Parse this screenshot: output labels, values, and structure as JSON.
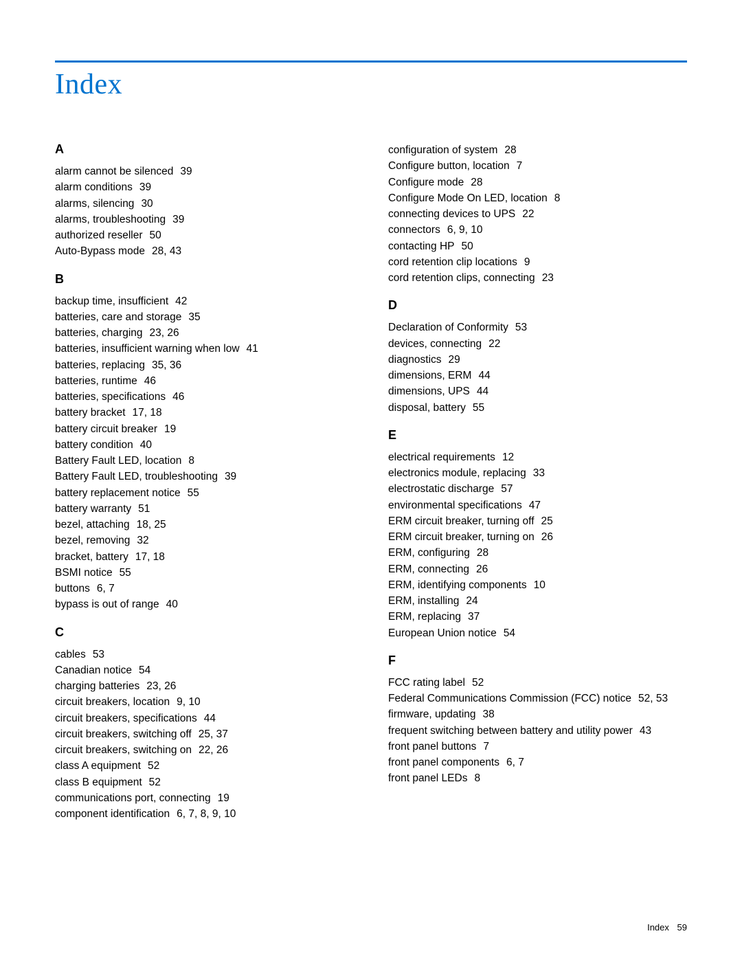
{
  "title": "Index",
  "footer": {
    "label": "Index",
    "page": "59"
  },
  "colors": {
    "accent": "#0073cf",
    "text": "#000000",
    "background": "#ffffff"
  },
  "columns": [
    {
      "sections": [
        {
          "letter": "A",
          "entries": [
            {
              "term": "alarm cannot be silenced",
              "pages": "39"
            },
            {
              "term": "alarm conditions",
              "pages": "39"
            },
            {
              "term": "alarms, silencing",
              "pages": "30"
            },
            {
              "term": "alarms, troubleshooting",
              "pages": "39"
            },
            {
              "term": "authorized reseller",
              "pages": "50"
            },
            {
              "term": "Auto-Bypass mode",
              "pages": "28, 43"
            }
          ]
        },
        {
          "letter": "B",
          "entries": [
            {
              "term": "backup time, insufficient",
              "pages": "42"
            },
            {
              "term": "batteries, care and storage",
              "pages": "35"
            },
            {
              "term": "batteries, charging",
              "pages": "23, 26"
            },
            {
              "term": "batteries, insufficient warning when low",
              "pages": "41"
            },
            {
              "term": "batteries, replacing",
              "pages": "35, 36"
            },
            {
              "term": "batteries, runtime",
              "pages": "46"
            },
            {
              "term": "batteries, specifications",
              "pages": "46"
            },
            {
              "term": "battery bracket",
              "pages": "17, 18"
            },
            {
              "term": "battery circuit breaker",
              "pages": "19"
            },
            {
              "term": "battery condition",
              "pages": "40"
            },
            {
              "term": "Battery Fault LED, location",
              "pages": "8"
            },
            {
              "term": "Battery Fault LED, troubleshooting",
              "pages": "39"
            },
            {
              "term": "battery replacement notice",
              "pages": "55"
            },
            {
              "term": "battery warranty",
              "pages": "51"
            },
            {
              "term": "bezel, attaching",
              "pages": "18, 25"
            },
            {
              "term": "bezel, removing",
              "pages": "32"
            },
            {
              "term": "bracket, battery",
              "pages": "17, 18"
            },
            {
              "term": "BSMI notice",
              "pages": "55"
            },
            {
              "term": "buttons",
              "pages": "6, 7"
            },
            {
              "term": "bypass is out of range",
              "pages": "40"
            }
          ]
        },
        {
          "letter": "C",
          "entries": [
            {
              "term": "cables",
              "pages": "53"
            },
            {
              "term": "Canadian notice",
              "pages": "54"
            },
            {
              "term": "charging batteries",
              "pages": "23, 26"
            },
            {
              "term": "circuit breakers, location",
              "pages": "9, 10"
            },
            {
              "term": "circuit breakers, specifications",
              "pages": "44"
            },
            {
              "term": "circuit breakers, switching off",
              "pages": "25, 37"
            },
            {
              "term": "circuit breakers, switching on",
              "pages": "22, 26"
            },
            {
              "term": "class A equipment",
              "pages": "52"
            },
            {
              "term": "class B equipment",
              "pages": "52"
            },
            {
              "term": "communications port, connecting",
              "pages": "19"
            },
            {
              "term": "component identification",
              "pages": "6, 7, 8, 9, 10"
            }
          ]
        }
      ]
    },
    {
      "sections": [
        {
          "letter": "",
          "entries": [
            {
              "term": "configuration of system",
              "pages": "28"
            },
            {
              "term": "Configure button, location",
              "pages": "7"
            },
            {
              "term": "Configure mode",
              "pages": "28"
            },
            {
              "term": "Configure Mode On LED, location",
              "pages": "8"
            },
            {
              "term": "connecting devices to UPS",
              "pages": "22"
            },
            {
              "term": "connectors",
              "pages": "6, 9, 10"
            },
            {
              "term": "contacting HP",
              "pages": "50"
            },
            {
              "term": "cord retention clip locations",
              "pages": "9"
            },
            {
              "term": "cord retention clips, connecting",
              "pages": "23"
            }
          ]
        },
        {
          "letter": "D",
          "entries": [
            {
              "term": "Declaration of Conformity",
              "pages": "53"
            },
            {
              "term": "devices, connecting",
              "pages": "22"
            },
            {
              "term": "diagnostics",
              "pages": "29"
            },
            {
              "term": "dimensions, ERM",
              "pages": "44"
            },
            {
              "term": "dimensions, UPS",
              "pages": "44"
            },
            {
              "term": "disposal, battery",
              "pages": "55"
            }
          ]
        },
        {
          "letter": "E",
          "entries": [
            {
              "term": "electrical requirements",
              "pages": "12"
            },
            {
              "term": "electronics module, replacing",
              "pages": "33"
            },
            {
              "term": "electrostatic discharge",
              "pages": "57"
            },
            {
              "term": "environmental specifications",
              "pages": "47"
            },
            {
              "term": "ERM circuit breaker, turning off",
              "pages": "25"
            },
            {
              "term": "ERM circuit breaker, turning on",
              "pages": "26"
            },
            {
              "term": "ERM, configuring",
              "pages": "28"
            },
            {
              "term": "ERM, connecting",
              "pages": "26"
            },
            {
              "term": "ERM, identifying components",
              "pages": "10"
            },
            {
              "term": "ERM, installing",
              "pages": "24"
            },
            {
              "term": "ERM, replacing",
              "pages": "37"
            },
            {
              "term": "European Union notice",
              "pages": "54"
            }
          ]
        },
        {
          "letter": "F",
          "entries": [
            {
              "term": "FCC rating label",
              "pages": "52"
            },
            {
              "term": "Federal Communications Commission (FCC) notice",
              "pages": "52, 53"
            },
            {
              "term": "firmware, updating",
              "pages": "38"
            },
            {
              "term": "frequent switching between battery and utility power",
              "pages": "43"
            },
            {
              "term": "front panel buttons",
              "pages": "7"
            },
            {
              "term": "front panel components",
              "pages": "6, 7"
            },
            {
              "term": "front panel LEDs",
              "pages": "8"
            }
          ]
        }
      ]
    }
  ]
}
